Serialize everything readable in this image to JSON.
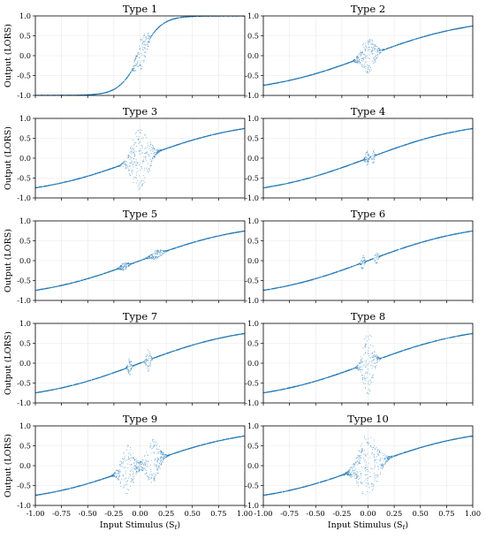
{
  "chart_data": {
    "type": "scatter",
    "series_color": "#1f77b4",
    "layout": "5 rows x 2 columns",
    "grid": true,
    "xlim": [
      -1.0,
      1.0
    ],
    "ylim": [
      -1.0,
      1.0
    ],
    "xticks": [
      "-1.00",
      "-0.75",
      "-0.50",
      "-0.25",
      "0.00",
      "0.25",
      "0.50",
      "0.75",
      "1.00"
    ],
    "yticks": [
      "1.0",
      "0.5",
      "0.0",
      "-0.5",
      "-1.0"
    ],
    "xlabel": "Input Stimulus (S",
    "xlabel_sub": "t",
    "xlabel_close": ")",
    "ylabel": "Output (LORS)",
    "panels": [
      {
        "title": "Type 1",
        "base_slope": 5.0,
        "base_scale": 1.0,
        "features": [
          {
            "center": 0.02,
            "width": 0.05,
            "amp": 0.45
          },
          {
            "center": -0.05,
            "width": 0.02,
            "amp": 0.12
          },
          {
            "center": 0.07,
            "width": 0.02,
            "amp": 0.1
          }
        ]
      },
      {
        "title": "Type 2",
        "base_slope": 1.0,
        "base_scale": 0.98,
        "features": [
          {
            "center": 0.0,
            "width": 0.08,
            "amp": 0.5
          }
        ]
      },
      {
        "title": "Type 3",
        "base_slope": 1.0,
        "base_scale": 0.98,
        "features": [
          {
            "center": 0.0,
            "width": 0.1,
            "amp": 0.85
          },
          {
            "center": 0.1,
            "width": 0.02,
            "amp": 0.08
          }
        ]
      },
      {
        "title": "Type 4",
        "base_slope": 1.0,
        "base_scale": 0.98,
        "features": [
          {
            "center": -0.01,
            "width": 0.02,
            "amp": 0.22
          },
          {
            "center": 0.05,
            "width": 0.015,
            "amp": 0.2
          }
        ]
      },
      {
        "title": "Type 5",
        "base_slope": 1.0,
        "base_scale": 0.98,
        "features": [
          {
            "center": -0.15,
            "width": 0.05,
            "amp": 0.1
          },
          {
            "center": 0.16,
            "width": 0.07,
            "amp": 0.12
          }
        ]
      },
      {
        "title": "Type 6",
        "base_slope": 1.0,
        "base_scale": 0.98,
        "features": [
          {
            "center": -0.05,
            "width": 0.02,
            "amp": 0.2
          },
          {
            "center": 0.08,
            "width": 0.02,
            "amp": 0.18
          }
        ]
      },
      {
        "title": "Type 7",
        "base_slope": 1.0,
        "base_scale": 0.98,
        "features": [
          {
            "center": -0.1,
            "width": 0.02,
            "amp": 0.25
          },
          {
            "center": 0.08,
            "width": 0.025,
            "amp": 0.3
          }
        ]
      },
      {
        "title": "Type 8",
        "base_slope": 1.0,
        "base_scale": 0.98,
        "features": [
          {
            "center": 0.0,
            "width": 0.06,
            "amp": 0.9
          }
        ]
      },
      {
        "title": "Type 9",
        "base_slope": 1.0,
        "base_scale": 0.98,
        "features": [
          {
            "center": -0.12,
            "width": 0.08,
            "amp": 0.65
          },
          {
            "center": 0.12,
            "width": 0.08,
            "amp": 0.6
          }
        ]
      },
      {
        "title": "Type 10",
        "base_slope": 1.0,
        "base_scale": 0.98,
        "features": [
          {
            "center": 0.0,
            "width": 0.12,
            "amp": 0.85
          }
        ]
      }
    ]
  }
}
